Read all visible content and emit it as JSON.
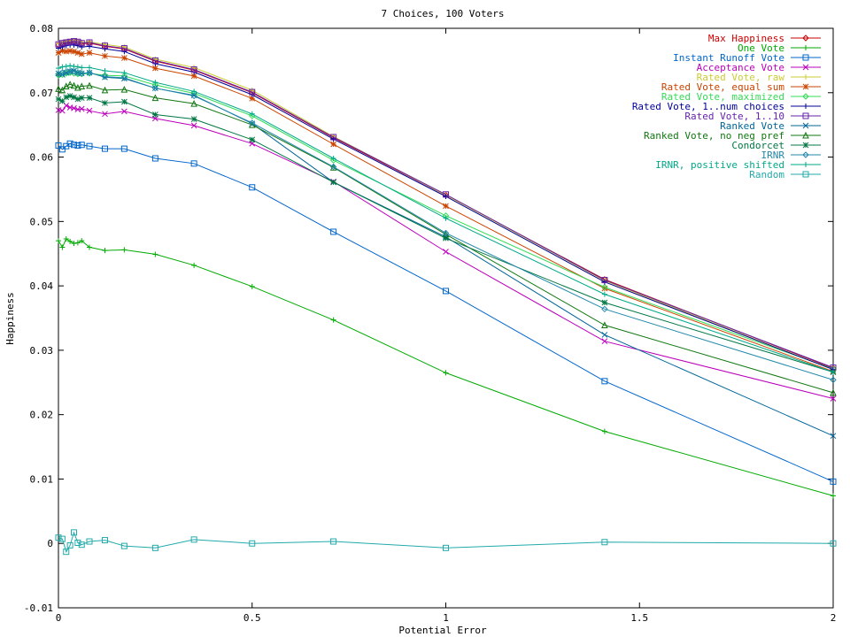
{
  "chart_data": {
    "type": "line",
    "title": "7 Choices, 100 Voters",
    "xlabel": "Potential Error",
    "ylabel": "Happiness",
    "xlim": [
      0,
      2
    ],
    "ylim": [
      -0.01,
      0.08
    ],
    "x_ticks": [
      0,
      0.5,
      1,
      1.5,
      2
    ],
    "x_tick_labels": [
      "0",
      "0.5",
      "1",
      "1.5",
      "2"
    ],
    "y_ticks": [
      -0.01,
      0,
      0.01,
      0.02,
      0.03,
      0.04,
      0.05,
      0.06,
      0.07,
      0.08
    ],
    "y_tick_labels": [
      "-0.01",
      "0",
      "0.01",
      "0.02",
      "0.03",
      "0.04",
      "0.05",
      "0.06",
      "0.07",
      "0.08"
    ],
    "grid": false,
    "legend_position": "top-right",
    "x": [
      0,
      0.01,
      0.02,
      0.03,
      0.04,
      0.05,
      0.06,
      0.08,
      0.12,
      0.17,
      0.25,
      0.35,
      0.5,
      0.71,
      1.0,
      1.41,
      2.0
    ],
    "series": [
      {
        "name": "Max Happiness",
        "color": "#cc0000",
        "values": [
          0.0774,
          0.0776,
          0.0777,
          0.0778,
          0.0779,
          0.0778,
          0.0776,
          0.0777,
          0.0772,
          0.0768,
          0.0749,
          0.0735,
          0.07,
          0.063,
          0.0541,
          0.041,
          0.0272
        ]
      },
      {
        "name": "One Vote",
        "color": "#00aa00",
        "values": [
          0.047,
          0.046,
          0.0473,
          0.0469,
          0.0466,
          0.0467,
          0.047,
          0.046,
          0.0455,
          0.0456,
          0.0449,
          0.0432,
          0.0399,
          0.0347,
          0.0265,
          0.0174,
          0.0074
        ]
      },
      {
        "name": "Instant Runoff Vote",
        "color": "#0066cc",
        "values": [
          0.0618,
          0.0612,
          0.0617,
          0.0621,
          0.0619,
          0.0618,
          0.0619,
          0.0617,
          0.0613,
          0.0613,
          0.0598,
          0.059,
          0.0553,
          0.0484,
          0.0392,
          0.0252,
          0.0096
        ]
      },
      {
        "name": "Acceptance Vote",
        "color": "#bb00bb",
        "values": [
          0.0673,
          0.0672,
          0.068,
          0.0677,
          0.0676,
          0.0674,
          0.0675,
          0.0672,
          0.0667,
          0.0671,
          0.066,
          0.0649,
          0.0621,
          0.0562,
          0.0453,
          0.0314,
          0.0225
        ]
      },
      {
        "name": "Rated Vote, raw",
        "color": "#cccc33",
        "values": [
          0.0776,
          0.0778,
          0.0779,
          0.078,
          0.0781,
          0.078,
          0.0778,
          0.0779,
          0.0775,
          0.0771,
          0.0752,
          0.0739,
          0.0704,
          0.0632,
          0.0541,
          0.0408,
          0.027
        ]
      },
      {
        "name": "Rated Vote, equal sum",
        "color": "#cc4400",
        "values": [
          0.0762,
          0.0765,
          0.0764,
          0.0765,
          0.0764,
          0.0762,
          0.076,
          0.0762,
          0.0757,
          0.0754,
          0.0738,
          0.0726,
          0.0691,
          0.062,
          0.0524,
          0.0396,
          0.0267
        ]
      },
      {
        "name": "Rated Vote, maximized",
        "color": "#33dd55",
        "values": [
          0.0727,
          0.0728,
          0.073,
          0.0731,
          0.073,
          0.0729,
          0.0729,
          0.073,
          0.0727,
          0.0726,
          0.0712,
          0.0699,
          0.0664,
          0.0595,
          0.0509,
          0.0398,
          0.0271
        ]
      },
      {
        "name": "Rated Vote, 1..num choices",
        "color": "#000099",
        "values": [
          0.0769,
          0.0771,
          0.0773,
          0.0774,
          0.0774,
          0.0773,
          0.0771,
          0.0772,
          0.0768,
          0.0764,
          0.0745,
          0.0732,
          0.0697,
          0.0628,
          0.0539,
          0.0406,
          0.027
        ]
      },
      {
        "name": "Rated Vote, 1..10",
        "color": "#6622aa",
        "values": [
          0.0775,
          0.0777,
          0.0778,
          0.0779,
          0.078,
          0.0779,
          0.0777,
          0.0778,
          0.0773,
          0.0769,
          0.075,
          0.0736,
          0.0701,
          0.0631,
          0.0542,
          0.0409,
          0.0273
        ]
      },
      {
        "name": "Ranked Vote",
        "color": "#006699",
        "values": [
          0.073,
          0.0728,
          0.0731,
          0.0733,
          0.0734,
          0.0731,
          0.073,
          0.0731,
          0.0724,
          0.0722,
          0.0707,
          0.0696,
          0.0652,
          0.0561,
          0.0476,
          0.0324,
          0.0167
        ]
      },
      {
        "name": "Ranked Vote, no neg pref",
        "color": "#117711",
        "values": [
          0.0706,
          0.0704,
          0.071,
          0.0713,
          0.0711,
          0.0708,
          0.071,
          0.0711,
          0.0704,
          0.0705,
          0.0692,
          0.0683,
          0.065,
          0.0584,
          0.048,
          0.0339,
          0.0234
        ]
      },
      {
        "name": "Condorcet",
        "color": "#007744",
        "values": [
          0.069,
          0.0687,
          0.0693,
          0.0695,
          0.0693,
          0.069,
          0.0692,
          0.0692,
          0.0684,
          0.0686,
          0.0666,
          0.0659,
          0.0627,
          0.0561,
          0.0474,
          0.0374,
          0.0266
        ]
      },
      {
        "name": "IRNR",
        "color": "#2288aa",
        "values": [
          0.0729,
          0.0731,
          0.0732,
          0.0733,
          0.0733,
          0.0731,
          0.073,
          0.0731,
          0.0725,
          0.0723,
          0.0707,
          0.0695,
          0.0653,
          0.0585,
          0.0482,
          0.0364,
          0.0254
        ]
      },
      {
        "name": "IRNR, positive shifted",
        "color": "#00aa88",
        "values": [
          0.0738,
          0.074,
          0.0741,
          0.0742,
          0.0741,
          0.074,
          0.0739,
          0.0739,
          0.0734,
          0.0731,
          0.0716,
          0.0702,
          0.0667,
          0.0598,
          0.0505,
          0.0387,
          0.0266
        ]
      },
      {
        "name": "Random",
        "color": "#22aaaa",
        "values": [
          0.0009,
          0.0007,
          -0.0013,
          -0.0003,
          0.0017,
          0.0001,
          -0.0002,
          0.0003,
          0.0005,
          -0.0004,
          -0.0007,
          0.0006,
          0.0,
          0.0003,
          -0.0007,
          0.0002,
          0.0
        ]
      }
    ]
  }
}
